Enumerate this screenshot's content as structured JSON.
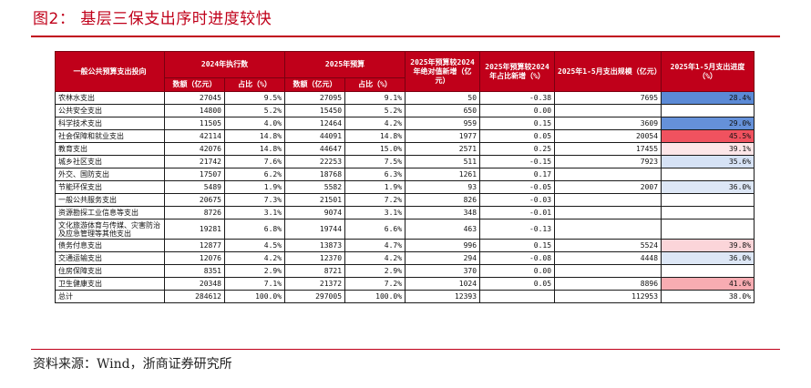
{
  "figure_title": "图2： 基层三保支出序时进度较快",
  "source": "资料来源：Wind，浙商证券研究所",
  "header": {
    "col0": "一般公共预算支出投向",
    "group_2024": "2024年执行数",
    "group_2025": "2025年预算",
    "abs_change": "2025年预算较2024年绝对值新增（亿元）",
    "share_change": "2025年预算较2024年占比新增（%）",
    "jan_may_scale": "2025年1-5月支出规模（亿元）",
    "jan_may_progress": "2025年1-5月支出进度（%）",
    "sub_amount": "数额（亿元）",
    "sub_share": "占比（%）",
    "sub_amount_2": "数额（亿元）",
    "sub_share_2": "占比（%）"
  },
  "rows": [
    {
      "name": "农林水支出",
      "a2024": "27045",
      "s2024": "9.5%",
      "a2025": "27095",
      "s2025": "9.1%",
      "abs": "50",
      "pct": "-0.38",
      "scale": "7695",
      "progress": "28.4%",
      "p": 28.4
    },
    {
      "name": "公共安全支出",
      "a2024": "14800",
      "s2024": "5.2%",
      "a2025": "15450",
      "s2025": "5.2%",
      "abs": "650",
      "pct": "0.00",
      "scale": "",
      "progress": "",
      "p": null
    },
    {
      "name": "科学技术支出",
      "a2024": "11505",
      "s2024": "4.0%",
      "a2025": "12464",
      "s2025": "4.2%",
      "abs": "959",
      "pct": "0.15",
      "scale": "3609",
      "progress": "29.0%",
      "p": 29.0
    },
    {
      "name": "社会保障和就业支出",
      "a2024": "42114",
      "s2024": "14.8%",
      "a2025": "44091",
      "s2025": "14.8%",
      "abs": "1977",
      "pct": "0.05",
      "scale": "20054",
      "progress": "45.5%",
      "p": 45.5
    },
    {
      "name": "教育支出",
      "a2024": "42076",
      "s2024": "14.8%",
      "a2025": "44647",
      "s2025": "15.0%",
      "abs": "2571",
      "pct": "0.25",
      "scale": "17455",
      "progress": "39.1%",
      "p": 39.1
    },
    {
      "name": "城乡社区支出",
      "a2024": "21742",
      "s2024": "7.6%",
      "a2025": "22253",
      "s2025": "7.5%",
      "abs": "511",
      "pct": "-0.15",
      "scale": "7923",
      "progress": "35.6%",
      "p": 35.6
    },
    {
      "name": "外交、国防支出",
      "a2024": "17507",
      "s2024": "6.2%",
      "a2025": "18768",
      "s2025": "6.3%",
      "abs": "1261",
      "pct": "0.17",
      "scale": "",
      "progress": "",
      "p": null
    },
    {
      "name": "节能环保支出",
      "a2024": "5489",
      "s2024": "1.9%",
      "a2025": "5582",
      "s2025": "1.9%",
      "abs": "93",
      "pct": "-0.05",
      "scale": "2007",
      "progress": "36.0%",
      "p": 36.0
    },
    {
      "name": "一般公共服务支出",
      "a2024": "20675",
      "s2024": "7.3%",
      "a2025": "21501",
      "s2025": "7.2%",
      "abs": "826",
      "pct": "-0.03",
      "scale": "",
      "progress": "",
      "p": null
    },
    {
      "name": "资源勘探工业信息等支出",
      "a2024": "8726",
      "s2024": "3.1%",
      "a2025": "9074",
      "s2025": "3.1%",
      "abs": "348",
      "pct": "-0.01",
      "scale": "",
      "progress": "",
      "p": null
    },
    {
      "name": "文化旅游体育与传媒、灾害防治及应急管理等其他支出",
      "a2024": "19281",
      "s2024": "6.8%",
      "a2025": "19744",
      "s2025": "6.6%",
      "abs": "463",
      "pct": "-0.13",
      "scale": "",
      "progress": "",
      "p": null,
      "tall": true
    },
    {
      "name": "债务付息支出",
      "a2024": "12877",
      "s2024": "4.5%",
      "a2025": "13873",
      "s2025": "4.7%",
      "abs": "996",
      "pct": "0.15",
      "scale": "5524",
      "progress": "39.8%",
      "p": 39.8
    },
    {
      "name": "交通运输支出",
      "a2024": "12076",
      "s2024": "4.2%",
      "a2025": "12370",
      "s2025": "4.2%",
      "abs": "294",
      "pct": "-0.08",
      "scale": "4448",
      "progress": "36.0%",
      "p": 36.0
    },
    {
      "name": "住房保障支出",
      "a2024": "8351",
      "s2024": "2.9%",
      "a2025": "8721",
      "s2025": "2.9%",
      "abs": "370",
      "pct": "0.00",
      "scale": "",
      "progress": "",
      "p": null
    },
    {
      "name": "卫生健康支出",
      "a2024": "20348",
      "s2024": "7.1%",
      "a2025": "21372",
      "s2025": "7.2%",
      "abs": "1024",
      "pct": "0.05",
      "scale": "8896",
      "progress": "41.6%",
      "p": 41.6
    },
    {
      "name": "总计",
      "a2024": "284612",
      "s2024": "100.0%",
      "a2025": "297005",
      "s2025": "100.0%",
      "abs": "12393",
      "pct": "",
      "scale": "112953",
      "progress": "38.0%",
      "p": 38.0
    }
  ],
  "heatmap_colors": {
    "low": "#5b8ad6",
    "mid": "#ffffff",
    "high": "#f0525f"
  }
}
